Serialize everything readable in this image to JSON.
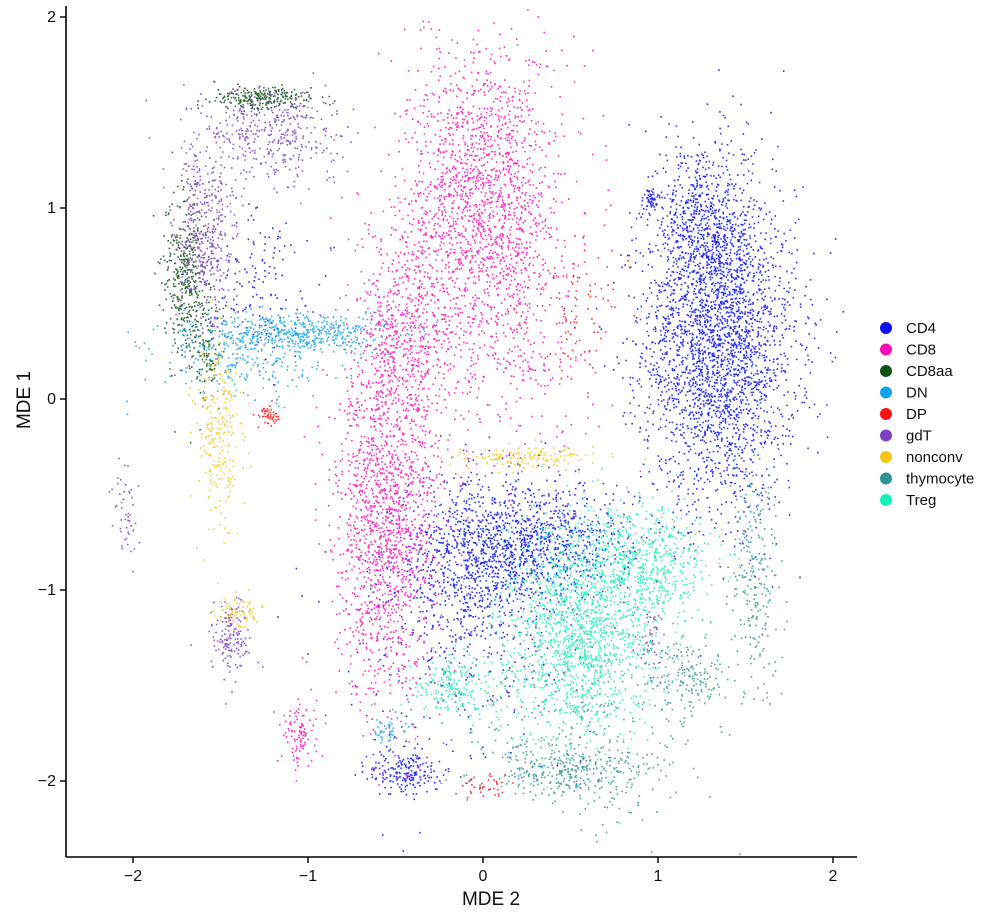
{
  "chart_data": {
    "type": "scatter",
    "title": "",
    "xlabel": "MDE 2",
    "ylabel": "MDE 1",
    "xlim": [
      -2.4,
      2.15
    ],
    "ylim": [
      -2.4,
      2.05
    ],
    "xticks": [
      -2,
      -1,
      0,
      1,
      2
    ],
    "xtick_labels": [
      "−2",
      "−1",
      "0",
      "1",
      "2"
    ],
    "yticks": [
      -2,
      -1,
      0,
      1,
      2
    ],
    "ytick_labels": [
      "−2",
      "−1",
      "0",
      "1",
      "2"
    ],
    "grid": false,
    "legend_position": "right",
    "series": [
      {
        "name": "CD4",
        "color": "#0a10f0",
        "clusters": [
          [
            1.35,
            0.28,
            0.22,
            0.42,
            0.55
          ],
          [
            -0.05,
            -0.85,
            0.22,
            0.22,
            0.18
          ],
          [
            0.35,
            -0.75,
            0.25,
            0.15,
            0.15
          ],
          [
            1.25,
            0.9,
            0.13,
            0.25,
            0.12
          ],
          [
            -0.45,
            -1.95,
            0.1,
            0.06,
            0.04
          ],
          [
            0.95,
            1.05,
            0.02,
            0.03,
            0.01
          ],
          [
            -1.3,
            0.65,
            0.15,
            0.2,
            0.03
          ],
          [
            -0.2,
            -1.3,
            0.35,
            0.35,
            0.05
          ]
        ]
      },
      {
        "name": "CD8",
        "color": "#ff08b9",
        "clusters": [
          [
            0.0,
            1.05,
            0.22,
            0.4,
            0.35
          ],
          [
            -0.55,
            -0.65,
            0.15,
            0.45,
            0.3
          ],
          [
            -0.45,
            0.35,
            0.15,
            0.3,
            0.12
          ],
          [
            -1.05,
            -1.75,
            0.05,
            0.08,
            0.02
          ],
          [
            0.15,
            0.2,
            0.3,
            0.3,
            0.05
          ]
        ]
      },
      {
        "name": "CD8aa",
        "color": "#0e5216",
        "clusters": [
          [
            -1.7,
            0.65,
            0.06,
            0.22,
            0.08
          ],
          [
            -1.25,
            1.58,
            0.15,
            0.03,
            0.05
          ],
          [
            -1.58,
            0.25,
            0.04,
            0.12,
            0.02
          ]
        ]
      },
      {
        "name": "DN",
        "color": "#10a2e8",
        "clusters": [
          [
            -1.05,
            0.35,
            0.28,
            0.05,
            0.1
          ],
          [
            -1.4,
            0.2,
            0.25,
            0.1,
            0.05
          ],
          [
            -0.55,
            -1.73,
            0.05,
            0.04,
            0.01
          ]
        ]
      },
      {
        "name": "DP",
        "color": "#ff1010",
        "clusters": [
          [
            -1.23,
            -0.08,
            0.03,
            0.03,
            0.01
          ],
          [
            0.0,
            -2.02,
            0.08,
            0.03,
            0.008
          ],
          [
            0.5,
            0.5,
            0.15,
            0.2,
            0.02
          ]
        ]
      },
      {
        "name": "gdT",
        "color": "#7d3fc6",
        "clusters": [
          [
            -1.2,
            1.4,
            0.2,
            0.12,
            0.08
          ],
          [
            -1.6,
            0.85,
            0.09,
            0.25,
            0.08
          ],
          [
            -1.45,
            -1.25,
            0.06,
            0.1,
            0.03
          ],
          [
            -2.05,
            -0.6,
            0.04,
            0.14,
            0.01
          ],
          [
            0.95,
            -1.25,
            0.04,
            0.1,
            0.01
          ]
        ]
      },
      {
        "name": "nonconv",
        "color": "#f5c60d",
        "clusters": [
          [
            -1.5,
            -0.2,
            0.07,
            0.25,
            0.05
          ],
          [
            0.25,
            -0.3,
            0.2,
            0.03,
            0.03
          ],
          [
            -1.4,
            -1.12,
            0.06,
            0.05,
            0.015
          ]
        ]
      },
      {
        "name": "thymocyte",
        "color": "#2b9494",
        "clusters": [
          [
            0.5,
            -1.95,
            0.25,
            0.07,
            0.06
          ],
          [
            1.55,
            -0.95,
            0.07,
            0.3,
            0.05
          ],
          [
            1.2,
            -1.45,
            0.1,
            0.1,
            0.03
          ],
          [
            0.6,
            -1.7,
            0.35,
            0.25,
            0.06
          ]
        ]
      },
      {
        "name": "Treg",
        "color": "#12f0b9",
        "clusters": [
          [
            0.55,
            -1.2,
            0.22,
            0.28,
            0.3
          ],
          [
            0.9,
            -0.85,
            0.2,
            0.15,
            0.12
          ],
          [
            -0.15,
            -1.5,
            0.12,
            0.08,
            0.04
          ]
        ]
      }
    ]
  }
}
